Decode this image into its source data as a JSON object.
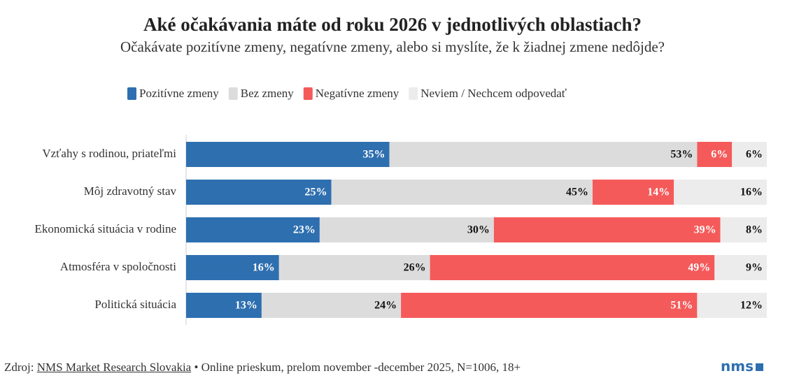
{
  "chart_data": {
    "type": "stacked-bar-horizontal",
    "title": "Aké očakávania máte od roku 2026 v jednotlivých oblastiach?",
    "subtitle": "Očakávate pozitívne zmeny, negatívne zmeny, alebo si myslíte, že k žiadnej zmene nedôjde?",
    "categories": [
      "Vzťahy s rodinou, priateľmi",
      "Môj zdravotný stav",
      "Ekonomická situácia v rodine",
      "Atmosféra v spoločnosti",
      "Politická situácia"
    ],
    "series": [
      {
        "name": "Pozitívne zmeny",
        "color": "#2e6fb0",
        "label_color": "#ffffff",
        "values": [
          35,
          25,
          23,
          16,
          13
        ],
        "value_labels": [
          "35%",
          "25%",
          "23%",
          "16%",
          "13%"
        ]
      },
      {
        "name": "Bez zmeny",
        "color": "#dcdcdc",
        "label_color": "#111111",
        "values": [
          53,
          45,
          30,
          26,
          24
        ],
        "value_labels": [
          "53%",
          "45%",
          "30%",
          "26%",
          "24%"
        ]
      },
      {
        "name": "Negatívne zmeny",
        "color": "#f55a5a",
        "label_color": "#ffffff",
        "values": [
          6,
          14,
          39,
          49,
          51
        ],
        "value_labels": [
          "6%",
          "14%",
          "39%",
          "49%",
          "51%"
        ]
      },
      {
        "name": "Neviem / Nechcem odpovedať",
        "color": "#ececec",
        "label_color": "#111111",
        "values": [
          6,
          16,
          8,
          9,
          12
        ],
        "value_labels": [
          "6%",
          "16%",
          "8%",
          "9%",
          "12%"
        ]
      }
    ],
    "legend": "top"
  },
  "footer": {
    "source_label": "Zdroj:",
    "source_link": "NMS Market Research Slovakia",
    "source_note": "• Online prieskum, prelom november -december 2025, N=1006, 18+",
    "logo": "nms"
  }
}
